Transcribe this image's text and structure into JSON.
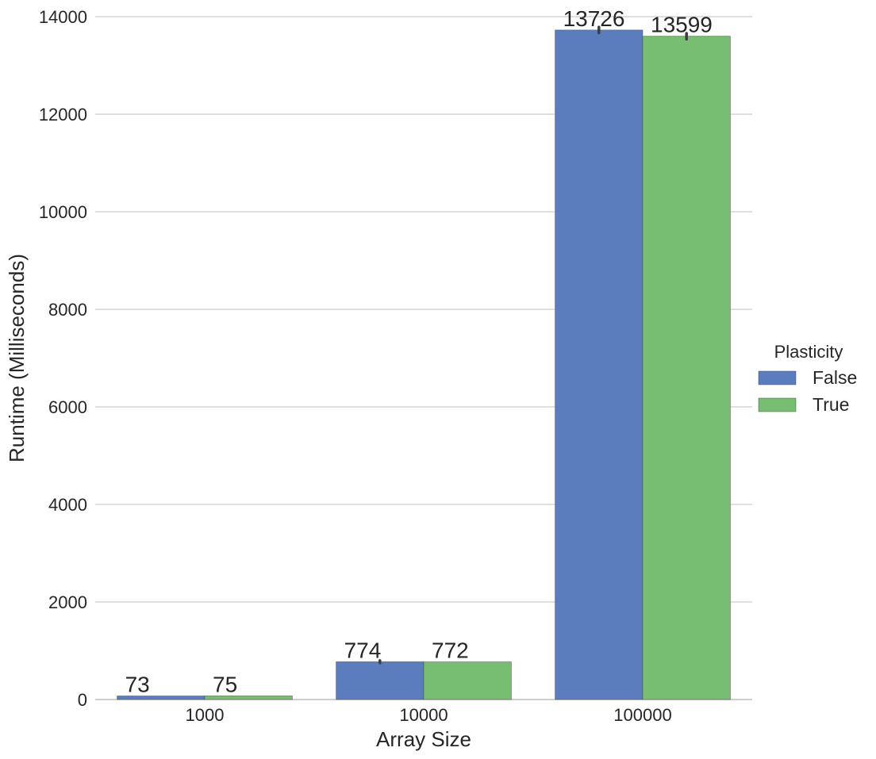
{
  "chart_data": {
    "type": "bar",
    "title": "",
    "xlabel": "Array Size",
    "ylabel": "Runtime (Milliseconds)",
    "categories": [
      "1000",
      "10000",
      "100000"
    ],
    "ylim": [
      0,
      14000
    ],
    "yticks": [
      0,
      2000,
      4000,
      6000,
      8000,
      10000,
      12000,
      14000
    ],
    "grid": "horizontal",
    "legend": {
      "title": "Plasticity",
      "placement": "outside-right"
    },
    "series": [
      {
        "name": "False",
        "color": "#5b7dbe",
        "values": [
          73,
          774,
          13726
        ],
        "errors": [
          0,
          25,
          60
        ],
        "labels": [
          "73",
          "774",
          "13726"
        ]
      },
      {
        "name": "True",
        "color": "#77be72",
        "values": [
          75,
          772,
          13599
        ],
        "errors": [
          0,
          0,
          60
        ],
        "labels": [
          "75",
          "772",
          "13599"
        ]
      }
    ]
  }
}
